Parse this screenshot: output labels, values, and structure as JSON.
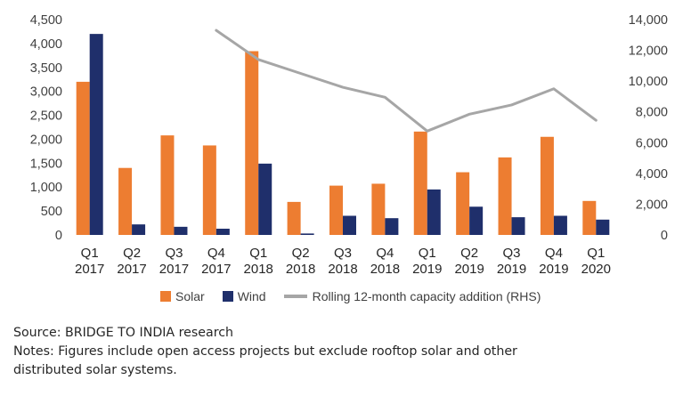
{
  "chart_data": {
    "type": "bar",
    "categories": [
      [
        "Q1",
        "2017"
      ],
      [
        "Q2",
        "2017"
      ],
      [
        "Q3",
        "2017"
      ],
      [
        "Q4",
        "2017"
      ],
      [
        "Q1",
        "2018"
      ],
      [
        "Q2",
        "2018"
      ],
      [
        "Q3",
        "2018"
      ],
      [
        "Q4",
        "2018"
      ],
      [
        "Q1",
        "2019"
      ],
      [
        "Q2",
        "2019"
      ],
      [
        "Q3",
        "2019"
      ],
      [
        "Q4",
        "2019"
      ],
      [
        "Q1",
        "2020"
      ]
    ],
    "series": [
      {
        "name": "Solar",
        "type": "bar",
        "axis": "left",
        "color": "#ED7D31",
        "values": [
          3200,
          1400,
          2080,
          1870,
          3840,
          690,
          1030,
          1070,
          2160,
          1310,
          1620,
          2050,
          710
        ]
      },
      {
        "name": "Wind",
        "type": "bar",
        "axis": "left",
        "color": "#1F2F6B",
        "values": [
          4200,
          220,
          170,
          130,
          1490,
          30,
          400,
          350,
          950,
          590,
          370,
          400,
          320
        ]
      },
      {
        "name": "Rolling 12-month capacity addition (RHS)",
        "type": "line",
        "axis": "right",
        "color": "#A6A6A6",
        "values": [
          null,
          null,
          null,
          13300,
          11400,
          10500,
          9600,
          8950,
          6750,
          7850,
          8450,
          9500,
          7450
        ]
      }
    ],
    "left_axis": {
      "min": 0,
      "max": 4500,
      "step": 500,
      "tick_labels": [
        "0",
        "500",
        "1,000",
        "1,500",
        "2,000",
        "2,500",
        "3,000",
        "3,500",
        "4,000",
        "4,500"
      ]
    },
    "right_axis": {
      "min": 0,
      "max": 14000,
      "step": 2000,
      "tick_labels": [
        "0",
        "2,000",
        "4,000",
        "6,000",
        "8,000",
        "10,000",
        "12,000",
        "14,000"
      ]
    },
    "legend_position": "bottom",
    "grid": false
  },
  "source": "Source: BRIDGE TO INDIA research",
  "notes": "Notes: Figures include open access projects but exclude rooftop solar and other distributed solar systems."
}
